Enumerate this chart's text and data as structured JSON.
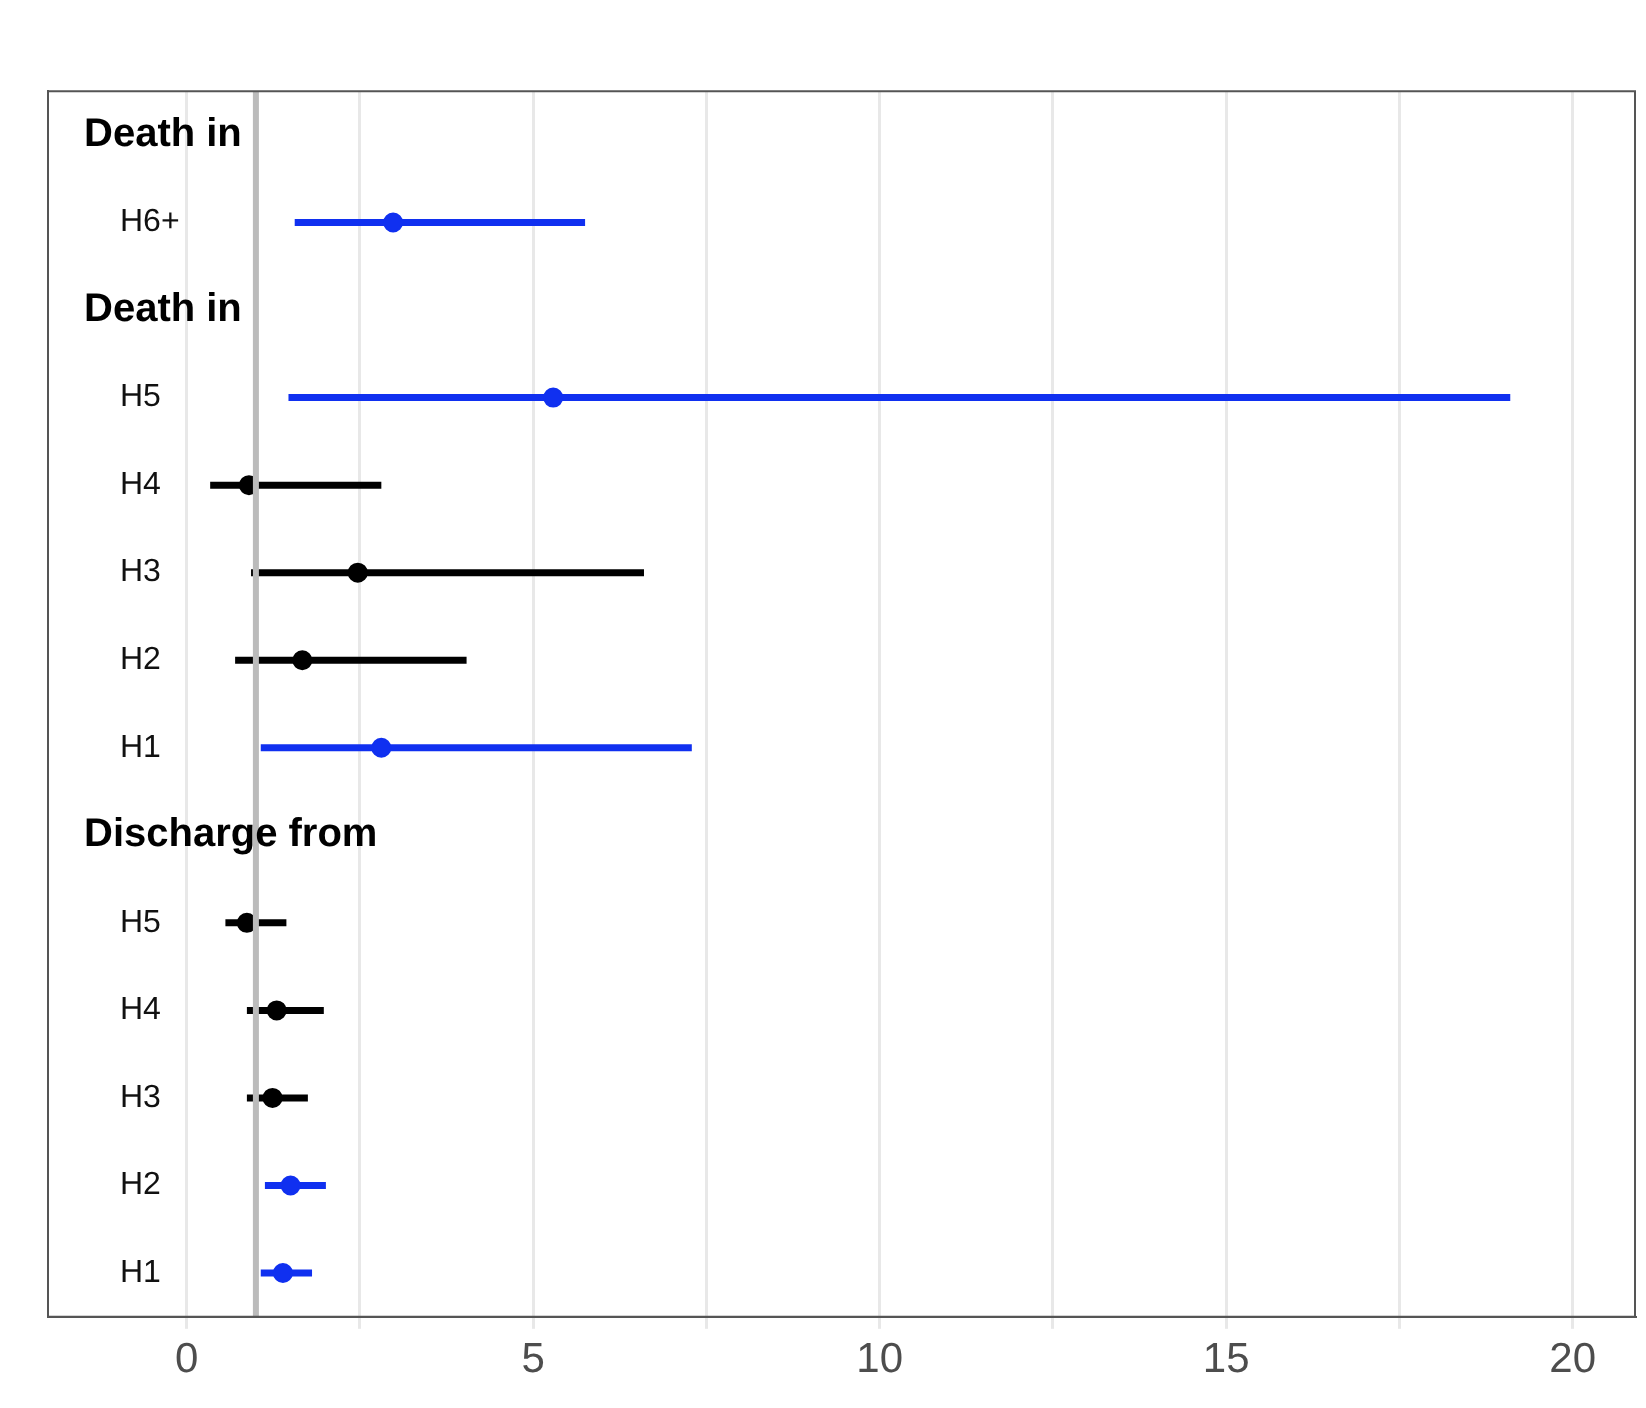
{
  "chart_data": {
    "type": "scatter",
    "orientation": "horizontal",
    "categories": [
      null,
      "H6+",
      null,
      "H5",
      "H4",
      "H3",
      "H2",
      "H1",
      null,
      "H5",
      "H4",
      "H3",
      "H2",
      "H1"
    ],
    "values": [
      null,
      2.98,
      null,
      5.29,
      0.9,
      2.47,
      1.67,
      2.81,
      null,
      0.87,
      1.3,
      1.24,
      1.5,
      1.39
    ],
    "errors": [
      null,
      [
        1.56,
        5.75
      ],
      null,
      [
        1.47,
        19.1
      ],
      [
        0.34,
        2.81
      ],
      [
        0.93,
        6.6
      ],
      [
        0.7,
        4.04
      ],
      [
        1.07,
        7.29
      ],
      null,
      [
        0.56,
        1.44
      ],
      [
        0.87,
        1.98
      ],
      [
        0.87,
        1.75
      ],
      [
        1.13,
        2.01
      ],
      [
        1.07,
        1.81
      ]
    ],
    "colors": [
      "#1030f0",
      "#1030f0",
      "#1030f0",
      "#1030f0",
      "#000000",
      "#000000",
      "#000000",
      "#1030f0",
      "#000000",
      "#000000",
      "#000000",
      "#000000",
      "#1030f0",
      "#1030f0"
    ],
    "xlim": [
      -2,
      20.9
    ],
    "xticks": [
      0,
      {
        "value": 2.5,
        "label": null
      },
      5,
      {
        "value": 7.5,
        "label": null
      },
      10,
      {
        "value": 12.5,
        "label": null
      },
      15,
      {
        "value": 17.5,
        "label": null
      },
      20
    ],
    "ref_lines": [
      {
        "axis": "x",
        "value": 1,
        "color": "#bbbbbb"
      }
    ],
    "annotations": [
      "Death in",
      "Death in",
      "Discharge from"
    ],
    "grid": "x",
    "marker": "circle",
    "legend": false
  }
}
